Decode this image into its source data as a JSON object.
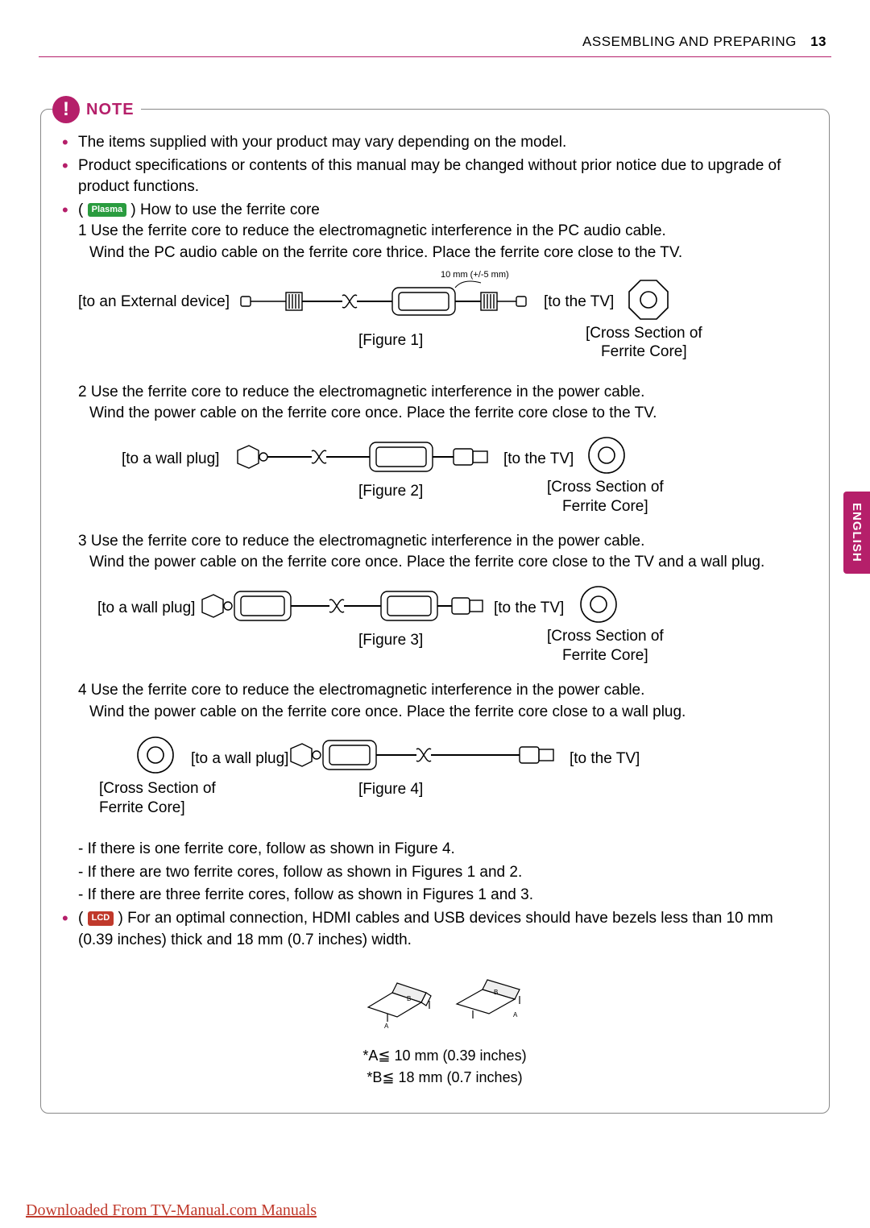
{
  "header": {
    "section": "ASSEMBLING AND PREPARING",
    "page": "13",
    "accent_color": "#b51f6a"
  },
  "sideTab": "ENGLISH",
  "note": {
    "label": "NOTE",
    "icon_glyph": "!",
    "bullets": {
      "b1": "The items supplied with your product may vary depending on the model.",
      "b2": "Product specifications or contents of this manual may be changed without prior notice due to upgrade of product functions.",
      "b3_badge": "Plasma",
      "b3_text": " How to use the ferrite core",
      "b4_badge": "LCD",
      "b4_text": " For an optimal connection, HDMI cables and USB devices should have bezels less than 10 mm (0.39 inches) thick and 18 mm (0.7 inches) width."
    },
    "steps": {
      "s1": {
        "num": "1",
        "line1": "Use the ferrite core to reduce the electromagnetic interference in the PC audio cable.",
        "line2": "Wind the PC audio cable on the ferrite core thrice. Place the ferrite core close to the TV.",
        "left_label": "[to an External device]",
        "right_label": "[to the TV]",
        "dim_label": "10 mm (+/-5 mm)",
        "fig": "[Figure 1]",
        "cross": "[Cross Section of Ferrite Core]"
      },
      "s2": {
        "num": "2",
        "line1": "Use the ferrite core to reduce the electromagnetic interference in the power cable.",
        "line2": "Wind the power cable on the ferrite core once. Place the ferrite core close to the TV.",
        "left_label": "[to a wall plug]",
        "right_label": "[to the TV]",
        "fig": "[Figure 2]",
        "cross": "[Cross Section of Ferrite Core]"
      },
      "s3": {
        "num": "3",
        "line1": "Use the ferrite core to reduce the electromagnetic interference in the power cable.",
        "line2": "Wind the power cable on the ferrite core once. Place the ferrite core close to the TV and a wall plug.",
        "left_label": "[to a wall plug]",
        "right_label": "[to the TV]",
        "fig": "[Figure 3]",
        "cross": "[Cross Section of Ferrite Core]"
      },
      "s4": {
        "num": "4",
        "line1": "Use the ferrite core to reduce the electromagnetic interference in the power cable.",
        "line2": "Wind the power cable on the ferrite core once. Place the ferrite core close to a wall plug.",
        "left_label": "[to a wall plug]",
        "right_label": "[to the TV]",
        "fig": "[Figure 4]",
        "cross": "[Cross Section of Ferrite Core]"
      }
    },
    "follow": {
      "f1": "- If there is one ferrite core, follow as shown in Figure 4.",
      "f2": "- If there are two ferrite cores, follow as shown in Figures 1 and 2.",
      "f3": "- If there are three ferrite cores, follow as shown in Figures 1 and 3."
    },
    "dims": {
      "a": "*A≦ 10 mm (0.39 inches)",
      "b": "*B≦ 18 mm (0.7 inches)"
    }
  },
  "footer": {
    "link_text": "Downloaded From TV-Manual.com Manuals"
  },
  "colors": {
    "accent": "#b51f6a",
    "plasma_badge": "#2a9c3f",
    "lcd_badge": "#c0392b",
    "link": "#c0392b"
  }
}
